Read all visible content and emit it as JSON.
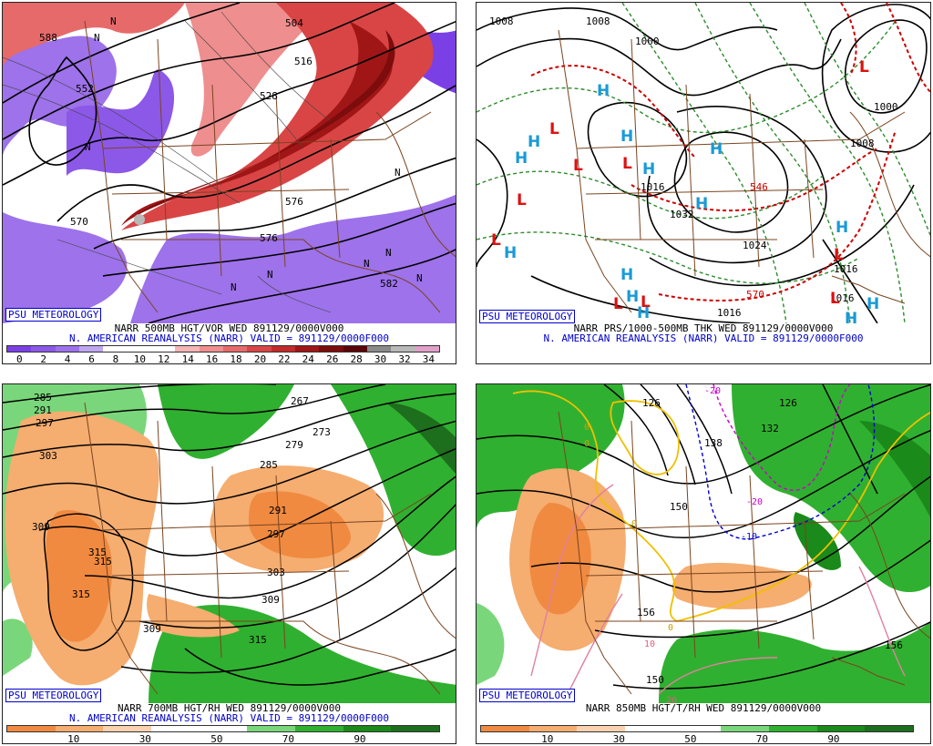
{
  "panels": {
    "p1": {
      "watermark": "PSU METEOROLOGY",
      "caption_line1": "NARR 500MB HGT/VOR WED 891129/0000V000",
      "caption_line2": "N. AMERICAN REANALYSIS (NARR) VALID = 891129/0000F000",
      "colorbar_labels": [
        "0",
        "2",
        "4",
        "6",
        "8",
        "10",
        "12",
        "14",
        "16",
        "18",
        "20",
        "22",
        "24",
        "26",
        "28",
        "30",
        "32",
        "34"
      ],
      "contour_labels": [
        "504",
        "516",
        "528",
        "570",
        "576",
        "582",
        "588",
        "576",
        "552"
      ],
      "markers": [
        "N",
        "N",
        "N",
        "N",
        "N",
        "N",
        "N",
        "N",
        "N"
      ]
    },
    "p2": {
      "watermark": "PSU METEOROLOGY",
      "caption_line1": "NARR PRS/1000-500MB THK WED 891129/0000V000",
      "caption_line2": "N. AMERICAN REANALYSIS (NARR) VALID = 891129/0000F000",
      "contour_labels": [
        "1008",
        "1008",
        "1000",
        "1032",
        "1024",
        "1016",
        "1016",
        "1016",
        "1000",
        "1008",
        "1016",
        "570",
        "546"
      ],
      "highs": [
        "H",
        "H",
        "H",
        "H",
        "H",
        "H",
        "H",
        "H",
        "H",
        "H",
        "H",
        "H",
        "H",
        "H"
      ],
      "lows": [
        "L",
        "L",
        "L",
        "L",
        "L",
        "L",
        "L",
        "L",
        "L",
        "L"
      ]
    },
    "p3": {
      "watermark": "PSU METEOROLOGY",
      "caption_line1": "NARR 700MB HGT/RH WED 891129/0000V000",
      "caption_line2": "N. AMERICAN REANALYSIS (NARR) VALID = 891129/0000F000",
      "colorbar_labels": [
        "10",
        "30",
        "50",
        "70",
        "90"
      ],
      "contour_labels": [
        "285",
        "291",
        "297",
        "303",
        "309",
        "315",
        "315",
        "315",
        "309",
        "267",
        "273",
        "279",
        "285",
        "291",
        "297",
        "303",
        "309",
        "315"
      ]
    },
    "p4": {
      "watermark": "PSU METEOROLOGY",
      "caption_line1": "NARR 850MB HGT/T/RH WED 891129/0000V000",
      "colorbar_labels": [
        "10",
        "30",
        "50",
        "70",
        "90"
      ],
      "contour_labels": [
        "126",
        "126",
        "132",
        "138",
        "150",
        "156",
        "150",
        "156"
      ],
      "temp_labels": [
        "0",
        "0",
        "0",
        "-10",
        "-20",
        "10",
        "20",
        "0",
        "-20"
      ]
    }
  },
  "colors": {
    "vort_scale": [
      "#7b3fe6",
      "#8c58e8",
      "#9d72ea",
      "#bfa6f0",
      "#ffffff",
      "#ffffff",
      "#ffffff",
      "#f5b5b5",
      "#ee8e8e",
      "#e66a6a",
      "#d94545",
      "#c22a2a",
      "#a01616",
      "#7d0c0c",
      "#5a0707",
      "#8a8a8a",
      "#b8b8b8",
      "#e0a0c8"
    ],
    "rh_scale": [
      "#f08a40",
      "#f5ad70",
      "#fad2b0",
      "#ffffff",
      "#ffffff",
      "#7ad67a",
      "#30b030",
      "#1a8a1a",
      "#1d6e1d"
    ],
    "map_border": "#7a4520",
    "psu_blue": "#0000cc"
  }
}
